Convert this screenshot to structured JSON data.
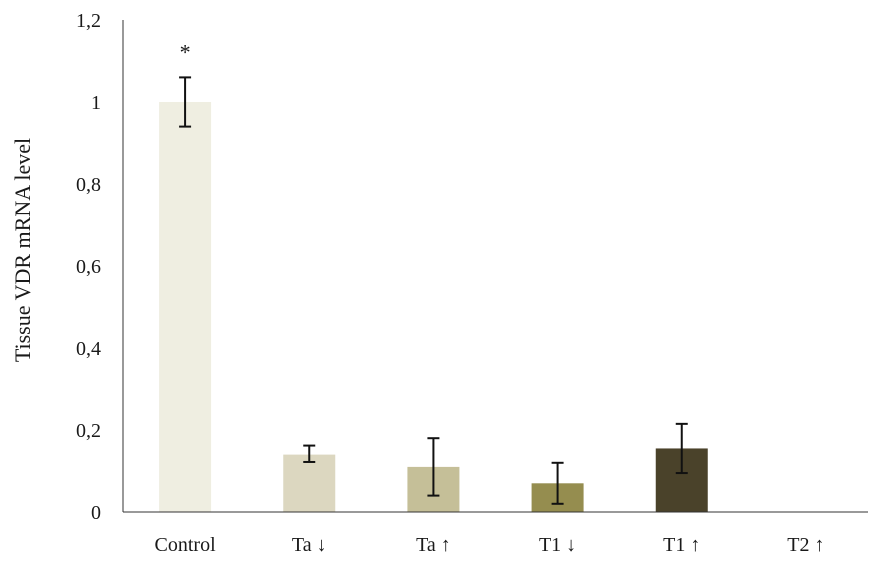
{
  "chart_data": {
    "type": "bar",
    "title": "",
    "xlabel": "",
    "ylabel": "Tissue VDR mRNA level",
    "ylim": [
      0,
      1.2
    ],
    "yticks": [
      0,
      0.2,
      0.4,
      0.6,
      0.8,
      1,
      1.2
    ],
    "ytick_labels": [
      "0",
      "0,2",
      "0,4",
      "0,6",
      "0,8",
      "1",
      "1,2"
    ],
    "categories": [
      "Control",
      "Ta ↓",
      "Ta ↑",
      "T1 ↓",
      "T1 ↑",
      "T2 ↑"
    ],
    "values": [
      1.0,
      0.14,
      0.11,
      0.07,
      0.155,
      null
    ],
    "error_low": [
      0.94,
      0.122,
      0.04,
      0.02,
      0.095,
      null
    ],
    "error_high": [
      1.06,
      0.162,
      0.18,
      0.12,
      0.215,
      null
    ],
    "colors": [
      "#efeee1",
      "#dcd7c0",
      "#c5bf98",
      "#958d4f",
      "#4a422a",
      null
    ],
    "annotations": [
      {
        "category": "Control",
        "text": "*"
      }
    ],
    "grid": false,
    "legend": "none"
  }
}
